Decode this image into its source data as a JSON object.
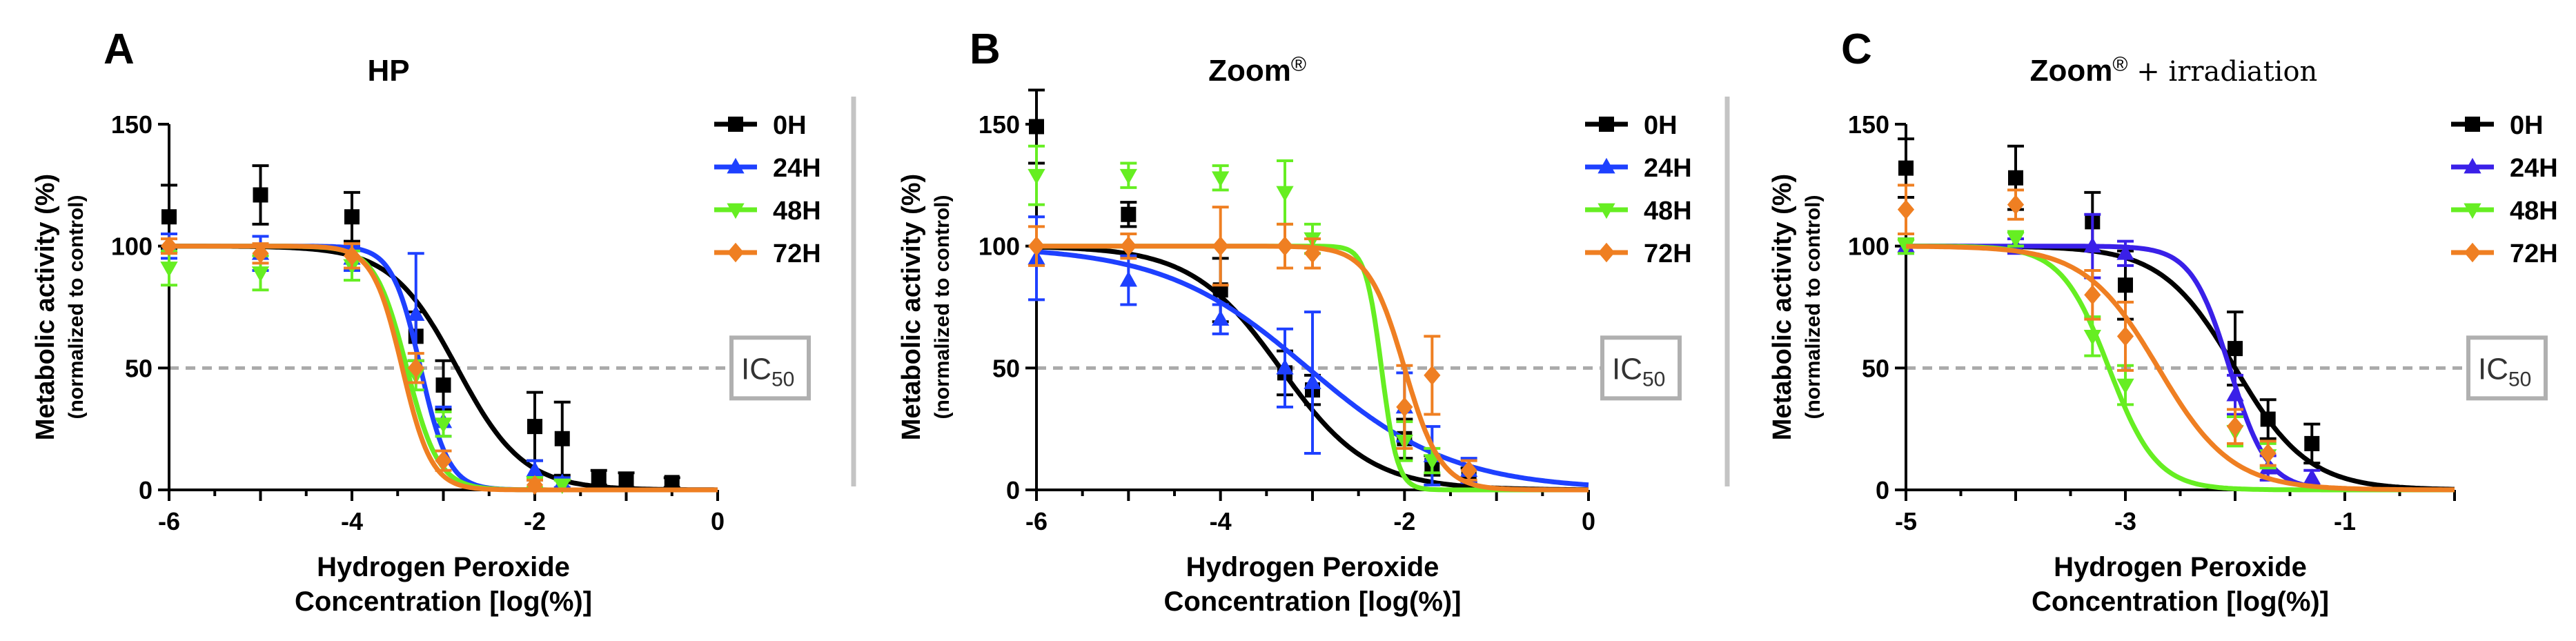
{
  "chart_data": [
    {
      "type": "scatter",
      "panel_letter": "A",
      "title": "HP",
      "title_suffix": "",
      "xlabel_line1": "Hydrogen Peroxide",
      "xlabel_line2": "Concentration [log(%)]",
      "ylabel_line1": "Metabolic  activity (%)",
      "ylabel_line2": "(normalized to control)",
      "xlim": [
        -6,
        0
      ],
      "ylim": [
        0,
        150
      ],
      "xticks": [
        -6,
        -4,
        -2,
        0
      ],
      "yticks": [
        0,
        50,
        100,
        150
      ],
      "ic50_line": 50,
      "ic50_label": "IC",
      "ic50_subscript": "50",
      "legend_position": "top-right",
      "series": [
        {
          "name": "0H",
          "color": "#000000",
          "marker": "square",
          "points": [
            {
              "x": -6.0,
              "y": 112,
              "err": 13
            },
            {
              "x": -5.0,
              "y": 121,
              "err": 12
            },
            {
              "x": -4.0,
              "y": 112,
              "err": 10
            },
            {
              "x": -3.3,
              "y": 63,
              "err": 10
            },
            {
              "x": -3.0,
              "y": 43,
              "err": 10
            },
            {
              "x": -2.0,
              "y": 26,
              "err": 14
            },
            {
              "x": -1.7,
              "y": 21,
              "err": 15
            },
            {
              "x": -1.3,
              "y": 5,
              "err": 3
            },
            {
              "x": -1.0,
              "y": 4,
              "err": 3
            },
            {
              "x": -0.5,
              "y": 3,
              "err": 2
            }
          ],
          "fit": {
            "top": 100,
            "bottom": 0,
            "logIC50": -2.85,
            "hill": -1.2
          }
        },
        {
          "name": "24H",
          "color": "#1e40ff",
          "marker": "triangle-up",
          "points": [
            {
              "x": -6.0,
              "y": 100,
              "err": 5
            },
            {
              "x": -5.0,
              "y": 97,
              "err": 7
            },
            {
              "x": -4.0,
              "y": 95,
              "err": 5
            },
            {
              "x": -3.3,
              "y": 72,
              "err": 25
            },
            {
              "x": -3.0,
              "y": 28,
              "err": 6
            },
            {
              "x": -2.0,
              "y": 8,
              "err": 4
            },
            {
              "x": -1.7,
              "y": 3,
              "err": 2
            }
          ],
          "fit": {
            "top": 100,
            "bottom": 0,
            "logIC50": -3.25,
            "hill": -2.8
          }
        },
        {
          "name": "48H",
          "color": "#66ee22",
          "marker": "triangle-down",
          "points": [
            {
              "x": -6.0,
              "y": 91,
              "err": 7
            },
            {
              "x": -5.0,
              "y": 89,
              "err": 7
            },
            {
              "x": -4.0,
              "y": 92,
              "err": 6
            },
            {
              "x": -3.3,
              "y": 47,
              "err": 6
            },
            {
              "x": -3.0,
              "y": 27,
              "err": 5
            },
            {
              "x": -2.0,
              "y": 3,
              "err": 2
            },
            {
              "x": -1.7,
              "y": 2,
              "err": 2
            }
          ],
          "fit": {
            "top": 100,
            "bottom": 0,
            "logIC50": -3.4,
            "hill": -2.5
          }
        },
        {
          "name": "72H",
          "color": "#ef7f22",
          "marker": "diamond",
          "points": [
            {
              "x": -6.0,
              "y": 100,
              "err": 3
            },
            {
              "x": -5.0,
              "y": 97,
              "err": 4
            },
            {
              "x": -4.0,
              "y": 96,
              "err": 5
            },
            {
              "x": -3.3,
              "y": 50,
              "err": 6
            },
            {
              "x": -3.0,
              "y": 12,
              "err": 4
            },
            {
              "x": -2.0,
              "y": 2,
              "err": 2
            }
          ],
          "fit": {
            "top": 100,
            "bottom": 0,
            "logIC50": -3.45,
            "hill": -2.7
          }
        }
      ]
    },
    {
      "type": "scatter",
      "panel_letter": "B",
      "title": "Zoom",
      "title_suffix": "®",
      "xlabel_line1": "Hydrogen Peroxide",
      "xlabel_line2": "Concentration [log(%)]",
      "ylabel_line1": "Metabolic  activity (%)",
      "ylabel_line2": "(normalized to control)",
      "xlim": [
        -6,
        0
      ],
      "ylim": [
        0,
        150
      ],
      "xticks": [
        -6,
        -4,
        -2,
        0
      ],
      "yticks": [
        0,
        50,
        100,
        150
      ],
      "ic50_line": 50,
      "ic50_label": "IC",
      "ic50_subscript": "50",
      "legend_position": "top-right",
      "series": [
        {
          "name": "0H",
          "color": "#000000",
          "marker": "square",
          "points": [
            {
              "x": -6.0,
              "y": 149,
              "err": 15
            },
            {
              "x": -5.0,
              "y": 113,
              "err": 5
            },
            {
              "x": -4.0,
              "y": 82,
              "err": 13
            },
            {
              "x": -3.3,
              "y": 48,
              "err": 9
            },
            {
              "x": -3.0,
              "y": 41,
              "err": 6
            },
            {
              "x": -2.0,
              "y": 21,
              "err": 8
            },
            {
              "x": -1.7,
              "y": 10,
              "err": 4
            },
            {
              "x": -1.3,
              "y": 6,
              "err": 3
            }
          ],
          "fit": {
            "top": 100,
            "bottom": 0,
            "logIC50": -3.35,
            "hill": -0.9
          }
        },
        {
          "name": "24H",
          "color": "#1e40ff",
          "marker": "triangle-up",
          "points": [
            {
              "x": -6.0,
              "y": 95,
              "err": 17
            },
            {
              "x": -5.0,
              "y": 86,
              "err": 10
            },
            {
              "x": -4.0,
              "y": 70,
              "err": 6
            },
            {
              "x": -3.3,
              "y": 50,
              "err": 16
            },
            {
              "x": -3.0,
              "y": 44,
              "err": 29
            },
            {
              "x": -2.0,
              "y": 34,
              "err": 14
            },
            {
              "x": -1.7,
              "y": 14,
              "err": 12
            },
            {
              "x": -1.3,
              "y": 8,
              "err": 5
            }
          ],
          "fit": {
            "top": 100,
            "bottom": 0,
            "logIC50": -3.05,
            "hill": -0.55
          }
        },
        {
          "name": "48H",
          "color": "#66ee22",
          "marker": "triangle-down",
          "points": [
            {
              "x": -6.0,
              "y": 129,
              "err": 12
            },
            {
              "x": -5.0,
              "y": 129,
              "err": 5
            },
            {
              "x": -4.0,
              "y": 128,
              "err": 5
            },
            {
              "x": -3.3,
              "y": 122,
              "err": 13
            },
            {
              "x": -3.0,
              "y": 103,
              "err": 6
            },
            {
              "x": -2.0,
              "y": 20,
              "err": 8
            },
            {
              "x": -1.7,
              "y": 12,
              "err": 5
            }
          ],
          "fit": {
            "top": 100,
            "bottom": 0,
            "logIC50": -2.25,
            "hill": -5
          }
        },
        {
          "name": "72H",
          "color": "#ef7f22",
          "marker": "diamond",
          "points": [
            {
              "x": -6.0,
              "y": 100,
              "err": 8
            },
            {
              "x": -5.0,
              "y": 100,
              "err": 5
            },
            {
              "x": -4.0,
              "y": 100,
              "err": 16
            },
            {
              "x": -3.3,
              "y": 100,
              "err": 9
            },
            {
              "x": -3.0,
              "y": 97,
              "err": 6
            },
            {
              "x": -2.0,
              "y": 34,
              "err": 17
            },
            {
              "x": -1.7,
              "y": 47,
              "err": 16
            },
            {
              "x": -1.3,
              "y": 8,
              "err": 4
            }
          ],
          "fit": {
            "top": 100,
            "bottom": 0,
            "logIC50": -2.0,
            "hill": -2.2
          }
        }
      ]
    },
    {
      "type": "scatter",
      "panel_letter": "C",
      "title": "Zoom",
      "title_suffix": "®",
      "title_extra": " + irradiation",
      "xlabel_line1": "Hydrogen Peroxide",
      "xlabel_line2": "Concentration [log(%)]",
      "ylabel_line1": "Metabolic  activity (%)",
      "ylabel_line2": "(normalized to control)",
      "xlim": [
        -5,
        0
      ],
      "ylim": [
        0,
        150
      ],
      "xticks": [
        -5,
        -3,
        -1
      ],
      "yticks": [
        0,
        50,
        100,
        150
      ],
      "ic50_line": 50,
      "ic50_label": "IC",
      "ic50_subscript": "50",
      "legend_position": "top-right",
      "series": [
        {
          "name": "0H",
          "color": "#000000",
          "marker": "square",
          "points": [
            {
              "x": -5.0,
              "y": 132,
              "err": 12
            },
            {
              "x": -4.0,
              "y": 128,
              "err": 13
            },
            {
              "x": -3.3,
              "y": 110,
              "err": 12
            },
            {
              "x": -3.0,
              "y": 84,
              "err": 14
            },
            {
              "x": -2.0,
              "y": 58,
              "err": 15
            },
            {
              "x": -1.7,
              "y": 29,
              "err": 8
            },
            {
              "x": -1.3,
              "y": 19,
              "err": 8
            }
          ],
          "fit": {
            "top": 100,
            "bottom": 0,
            "logIC50": -2.0,
            "hill": -1.3
          }
        },
        {
          "name": "24H",
          "color": "#3a20e8",
          "marker": "triangle-up",
          "points": [
            {
              "x": -5.0,
              "y": 100,
              "err": 3
            },
            {
              "x": -4.0,
              "y": 100,
              "err": 3
            },
            {
              "x": -3.3,
              "y": 100,
              "err": 13
            },
            {
              "x": -3.0,
              "y": 97,
              "err": 5
            },
            {
              "x": -2.0,
              "y": 39,
              "err": 8
            },
            {
              "x": -1.7,
              "y": 9,
              "err": 5
            },
            {
              "x": -1.3,
              "y": 5,
              "err": 3
            }
          ],
          "fit": {
            "top": 100,
            "bottom": 0,
            "logIC50": -2.05,
            "hill": -2.5
          }
        },
        {
          "name": "48H",
          "color": "#66ee22",
          "marker": "triangle-down",
          "points": [
            {
              "x": -5.0,
              "y": 100,
              "err": 3
            },
            {
              "x": -4.0,
              "y": 103,
              "err": 3
            },
            {
              "x": -3.3,
              "y": 63,
              "err": 8
            },
            {
              "x": -3.0,
              "y": 43,
              "err": 8
            },
            {
              "x": -2.0,
              "y": 24,
              "err": 6
            },
            {
              "x": -1.7,
              "y": 14,
              "err": 5
            }
          ],
          "fit": {
            "top": 100,
            "bottom": 0,
            "logIC50": -3.15,
            "hill": -2.0
          }
        },
        {
          "name": "72H",
          "color": "#ef7f22",
          "marker": "diamond",
          "points": [
            {
              "x": -5.0,
              "y": 115,
              "err": 10
            },
            {
              "x": -4.0,
              "y": 117,
              "err": 6
            },
            {
              "x": -3.3,
              "y": 80,
              "err": 10
            },
            {
              "x": -3.0,
              "y": 63,
              "err": 14
            },
            {
              "x": -2.0,
              "y": 26,
              "err": 7
            },
            {
              "x": -1.7,
              "y": 15,
              "err": 5
            }
          ],
          "fit": {
            "top": 100,
            "bottom": 0,
            "logIC50": -2.7,
            "hill": -1.3
          }
        }
      ]
    }
  ],
  "colors": {
    "axis": "#000000",
    "ic50_line": "#aaaaaa",
    "ic50_box": "#b0b0b0",
    "divider": "#c4c4c4"
  }
}
